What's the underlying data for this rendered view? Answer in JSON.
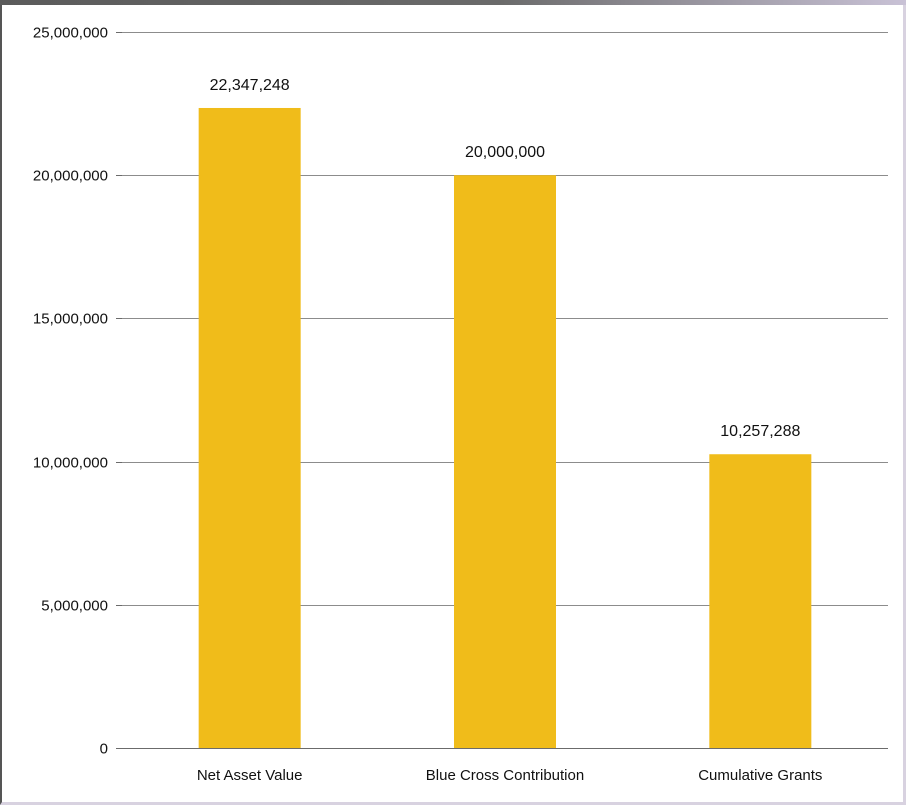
{
  "chart_data": {
    "type": "bar",
    "categories": [
      "Net Asset Value",
      "Blue Cross Contribution",
      "Cumulative Grants"
    ],
    "values": [
      22347248,
      20000000,
      10257288
    ],
    "data_labels": [
      "22,347,248",
      "20,000,000",
      "10,257,288"
    ],
    "title": "",
    "xlabel": "",
    "ylabel": "",
    "ylim": [
      0,
      25000000
    ],
    "yticks": [
      0,
      5000000,
      10000000,
      15000000,
      20000000,
      25000000
    ],
    "ytick_labels": [
      "0",
      "5,000,000",
      "10,000,000",
      "15,000,000",
      "20,000,000",
      "25,000,000"
    ],
    "grid": true,
    "legend": "none",
    "colors": {
      "bar": "#F0BC1A",
      "grid": "#8c8c8c",
      "axis": "#6b6b6b"
    }
  }
}
